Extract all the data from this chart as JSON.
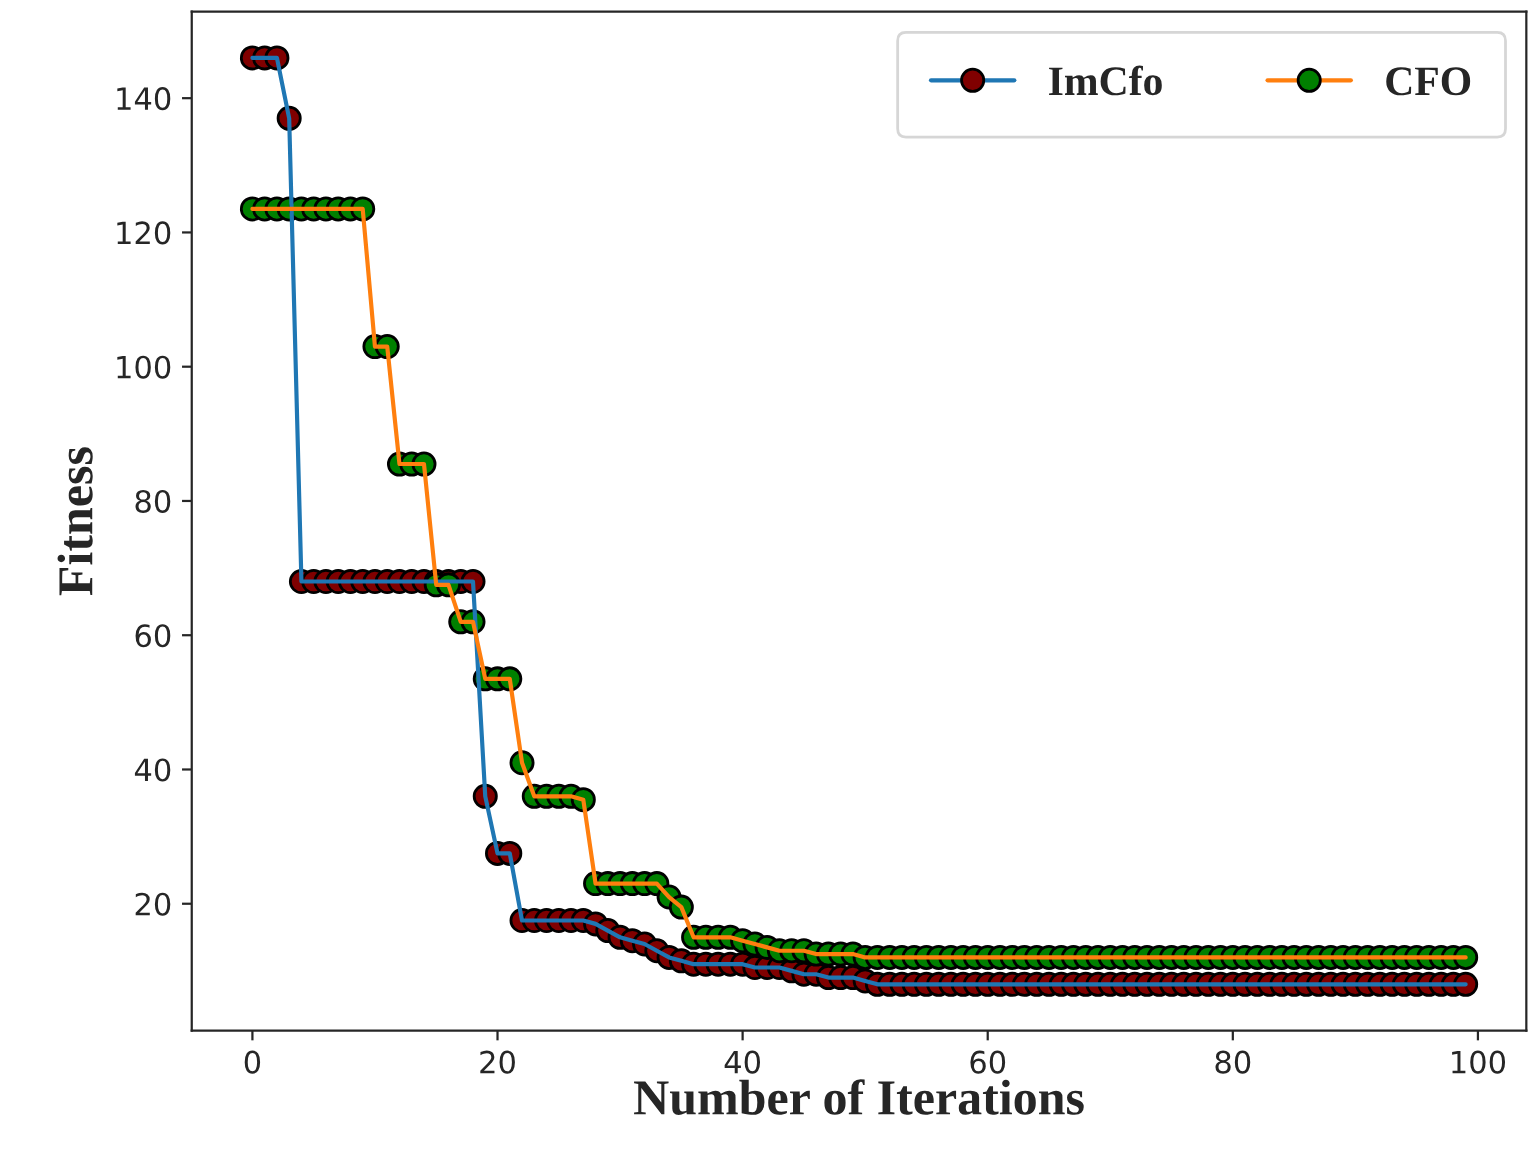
{
  "chart_data": {
    "type": "line",
    "xlabel": "Number of Iterations",
    "ylabel": "Fitness",
    "x": [
      0,
      1,
      2,
      3,
      4,
      5,
      6,
      7,
      8,
      9,
      10,
      11,
      12,
      13,
      14,
      15,
      16,
      17,
      18,
      19,
      20,
      21,
      22,
      23,
      24,
      25,
      26,
      27,
      28,
      29,
      30,
      31,
      32,
      33,
      34,
      35,
      36,
      37,
      38,
      39,
      40,
      41,
      42,
      43,
      44,
      45,
      46,
      47,
      48,
      49,
      50,
      51,
      52,
      53,
      54,
      55,
      56,
      57,
      58,
      59,
      60,
      61,
      62,
      63,
      64,
      65,
      66,
      67,
      68,
      69,
      70,
      71,
      72,
      73,
      74,
      75,
      76,
      77,
      78,
      79,
      80,
      81,
      82,
      83,
      84,
      85,
      86,
      87,
      88,
      89,
      90,
      91,
      92,
      93,
      94,
      95,
      96,
      97,
      98,
      99
    ],
    "series": [
      {
        "name": "ImCfo",
        "color": "#800000",
        "values": [
          146,
          146,
          146,
          137,
          68,
          68,
          68,
          68,
          68,
          68,
          68,
          68,
          68,
          68,
          68,
          68,
          68,
          68,
          68,
          36,
          27.5,
          27.5,
          17.5,
          17.5,
          17.5,
          17.5,
          17.5,
          17.5,
          17,
          16,
          15,
          14.5,
          14,
          13,
          12,
          11.5,
          11,
          11,
          11,
          11,
          11,
          10.5,
          10.5,
          10.5,
          10,
          9.5,
          9.5,
          9,
          9,
          9,
          8.5,
          8,
          8,
          8,
          8,
          8,
          8,
          8,
          8,
          8,
          8,
          8,
          8,
          8,
          8,
          8,
          8,
          8,
          8,
          8,
          8,
          8,
          8,
          8,
          8,
          8,
          8,
          8,
          8,
          8,
          8,
          8,
          8,
          8,
          8,
          8,
          8,
          8,
          8,
          8,
          8,
          8,
          8,
          8,
          8,
          8,
          8,
          8,
          8,
          8
        ]
      },
      {
        "name": "CFO",
        "color": "#008000",
        "values": [
          123.5,
          123.5,
          123.5,
          123.5,
          123.5,
          123.5,
          123.5,
          123.5,
          123.5,
          123.5,
          103,
          103,
          85.5,
          85.5,
          85.5,
          67.5,
          67.5,
          62,
          62,
          53.5,
          53.5,
          53.5,
          41,
          36,
          36,
          36,
          36,
          35.5,
          23,
          23,
          23,
          23,
          23,
          23,
          21,
          19.5,
          15,
          15,
          15,
          15,
          14.5,
          14,
          13.5,
          13,
          13,
          13,
          12.5,
          12.5,
          12.5,
          12.5,
          12,
          12,
          12,
          12,
          12,
          12,
          12,
          12,
          12,
          12,
          12,
          12,
          12,
          12,
          12,
          12,
          12,
          12,
          12,
          12,
          12,
          12,
          12,
          12,
          12,
          12,
          12,
          12,
          12,
          12,
          12,
          12,
          12,
          12,
          12,
          12,
          12,
          12,
          12,
          12,
          12,
          12,
          12,
          12,
          12,
          12,
          12,
          12,
          12,
          12
        ]
      }
    ],
    "xlim": [
      -4.95,
      103.95
    ],
    "ylim": [
      1.1,
      152.9
    ],
    "xticks": [
      0,
      20,
      40,
      60,
      80,
      100
    ],
    "yticks": [
      20,
      40,
      60,
      80,
      100,
      120,
      140
    ],
    "marker": "circle",
    "line_style": "solid",
    "legend": "top right",
    "grid": false
  }
}
